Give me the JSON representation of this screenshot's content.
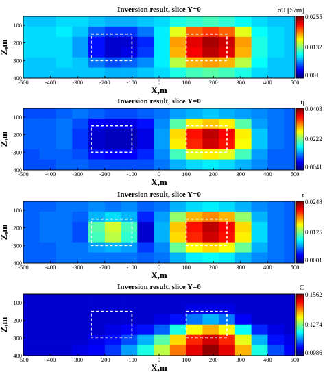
{
  "figure": {
    "background": "#ffffff",
    "colormap": "jet",
    "box_outline_color": "#ffffff"
  },
  "chart_data": [
    {
      "type": "heatmap",
      "title": "Inversion result, slice Y=0",
      "xlabel": "X,m",
      "ylabel": "Z,m",
      "colorbar_label": "σ0 [S/m]",
      "colorbar_ticks": [
        "0.0255",
        "0.0132",
        "0.001"
      ],
      "vmin": 0.001,
      "vmax": 0.0255,
      "xlim": [
        -500,
        500
      ],
      "ylim": [
        400,
        50
      ],
      "x_ticks": [
        -500,
        -400,
        -300,
        -200,
        -100,
        0,
        100,
        200,
        300,
        400,
        500
      ],
      "y_ticks": [
        100,
        200,
        300,
        400
      ],
      "x_edges": [
        -500,
        -440,
        -380,
        -320,
        -260,
        -200,
        -140,
        -80,
        -20,
        40,
        100,
        160,
        220,
        280,
        340,
        400,
        460,
        500
      ],
      "y_edges": [
        50,
        108,
        166,
        224,
        282,
        340,
        400
      ],
      "grid": [
        [
          0.32,
          0.32,
          0.34,
          0.34,
          0.32,
          0.3,
          0.3,
          0.32,
          0.34,
          0.4,
          0.42,
          0.44,
          0.42,
          0.38,
          0.34,
          0.32,
          0.32
        ],
        [
          0.34,
          0.34,
          0.36,
          0.32,
          0.22,
          0.18,
          0.18,
          0.24,
          0.36,
          0.6,
          0.78,
          0.82,
          0.78,
          0.6,
          0.38,
          0.34,
          0.32
        ],
        [
          0.34,
          0.34,
          0.34,
          0.28,
          0.14,
          0.08,
          0.08,
          0.16,
          0.36,
          0.72,
          0.9,
          0.96,
          0.92,
          0.72,
          0.4,
          0.34,
          0.32
        ],
        [
          0.34,
          0.34,
          0.34,
          0.28,
          0.14,
          0.08,
          0.1,
          0.18,
          0.36,
          0.7,
          0.88,
          0.94,
          0.9,
          0.7,
          0.4,
          0.34,
          0.32
        ],
        [
          0.32,
          0.32,
          0.34,
          0.32,
          0.24,
          0.2,
          0.22,
          0.26,
          0.36,
          0.56,
          0.7,
          0.72,
          0.7,
          0.56,
          0.38,
          0.32,
          0.32
        ],
        [
          0.32,
          0.32,
          0.32,
          0.32,
          0.32,
          0.3,
          0.3,
          0.32,
          0.34,
          0.4,
          0.44,
          0.46,
          0.44,
          0.4,
          0.34,
          0.32,
          0.32
        ]
      ],
      "boxes": [
        {
          "x0": -250,
          "x1": -100,
          "z0": 150,
          "z1": 300
        },
        {
          "x0": 100,
          "x1": 250,
          "z0": 150,
          "z1": 300
        }
      ]
    },
    {
      "type": "heatmap",
      "title": "Inversion result, slice Y=0",
      "xlabel": "X,m",
      "ylabel": "Z,m",
      "colorbar_label": "η",
      "colorbar_ticks": [
        "0.0403",
        "0.0222",
        "0.0041"
      ],
      "vmin": 0.0041,
      "vmax": 0.0403,
      "xlim": [
        -500,
        500
      ],
      "ylim": [
        400,
        50
      ],
      "x_ticks": [
        -500,
        -400,
        -300,
        -200,
        -100,
        0,
        100,
        200,
        300,
        400,
        500
      ],
      "y_ticks": [
        100,
        200,
        300,
        400
      ],
      "x_edges": [
        -500,
        -440,
        -380,
        -320,
        -260,
        -200,
        -140,
        -80,
        -20,
        40,
        100,
        160,
        220,
        280,
        340,
        400,
        460,
        500
      ],
      "y_edges": [
        50,
        108,
        166,
        224,
        282,
        340,
        400
      ],
      "grid": [
        [
          0.2,
          0.2,
          0.22,
          0.24,
          0.22,
          0.2,
          0.2,
          0.22,
          0.24,
          0.28,
          0.3,
          0.32,
          0.3,
          0.28,
          0.26,
          0.24,
          0.22
        ],
        [
          0.22,
          0.22,
          0.24,
          0.2,
          0.12,
          0.1,
          0.1,
          0.14,
          0.26,
          0.46,
          0.64,
          0.68,
          0.64,
          0.46,
          0.28,
          0.24,
          0.22
        ],
        [
          0.22,
          0.22,
          0.24,
          0.18,
          0.08,
          0.06,
          0.06,
          0.1,
          0.28,
          0.66,
          0.86,
          0.94,
          0.88,
          0.64,
          0.32,
          0.24,
          0.22
        ],
        [
          0.22,
          0.22,
          0.24,
          0.18,
          0.08,
          0.06,
          0.06,
          0.1,
          0.28,
          0.64,
          0.84,
          0.92,
          0.86,
          0.62,
          0.32,
          0.24,
          0.22
        ],
        [
          0.2,
          0.22,
          0.22,
          0.2,
          0.14,
          0.12,
          0.12,
          0.16,
          0.26,
          0.44,
          0.6,
          0.64,
          0.6,
          0.44,
          0.28,
          0.22,
          0.22
        ],
        [
          0.2,
          0.2,
          0.22,
          0.22,
          0.2,
          0.2,
          0.2,
          0.2,
          0.24,
          0.3,
          0.34,
          0.36,
          0.34,
          0.3,
          0.26,
          0.22,
          0.22
        ]
      ],
      "boxes": [
        {
          "x0": -250,
          "x1": -100,
          "z0": 150,
          "z1": 300
        },
        {
          "x0": 100,
          "x1": 250,
          "z0": 150,
          "z1": 300
        }
      ]
    },
    {
      "type": "heatmap",
      "title": "Inversion result, slice Y=0",
      "xlabel": "X,m",
      "ylabel": "Z,m",
      "colorbar_label": "τ",
      "colorbar_ticks": [
        "0.0248",
        "0.0125",
        "0.0001"
      ],
      "vmin": 0.0001,
      "vmax": 0.0248,
      "xlim": [
        -500,
        500
      ],
      "ylim": [
        400,
        50
      ],
      "x_ticks": [
        -500,
        -400,
        -300,
        -200,
        -100,
        0,
        100,
        200,
        300,
        400,
        500
      ],
      "y_ticks": [
        100,
        200,
        300,
        400
      ],
      "x_edges": [
        -500,
        -440,
        -380,
        -320,
        -260,
        -200,
        -140,
        -80,
        -20,
        40,
        100,
        160,
        220,
        280,
        340,
        400,
        460,
        500
      ],
      "y_edges": [
        50,
        108,
        166,
        224,
        282,
        340,
        400
      ],
      "grid": [
        [
          0.22,
          0.22,
          0.24,
          0.24,
          0.26,
          0.24,
          0.26,
          0.22,
          0.24,
          0.3,
          0.34,
          0.36,
          0.34,
          0.3,
          0.26,
          0.24,
          0.22
        ],
        [
          0.22,
          0.24,
          0.24,
          0.22,
          0.3,
          0.34,
          0.3,
          0.16,
          0.28,
          0.52,
          0.7,
          0.74,
          0.7,
          0.52,
          0.3,
          0.24,
          0.22
        ],
        [
          0.22,
          0.24,
          0.24,
          0.2,
          0.46,
          0.58,
          0.44,
          0.08,
          0.3,
          0.68,
          0.86,
          0.94,
          0.88,
          0.66,
          0.34,
          0.24,
          0.22
        ],
        [
          0.22,
          0.24,
          0.24,
          0.2,
          0.44,
          0.56,
          0.42,
          0.08,
          0.3,
          0.66,
          0.84,
          0.92,
          0.86,
          0.64,
          0.34,
          0.24,
          0.22
        ],
        [
          0.22,
          0.22,
          0.24,
          0.24,
          0.28,
          0.3,
          0.28,
          0.18,
          0.26,
          0.48,
          0.62,
          0.66,
          0.62,
          0.48,
          0.3,
          0.24,
          0.22
        ],
        [
          0.22,
          0.22,
          0.24,
          0.24,
          0.24,
          0.24,
          0.24,
          0.22,
          0.24,
          0.3,
          0.36,
          0.38,
          0.36,
          0.3,
          0.26,
          0.24,
          0.22
        ]
      ],
      "boxes": [
        {
          "x0": -250,
          "x1": -100,
          "z0": 150,
          "z1": 300
        },
        {
          "x0": 100,
          "x1": 250,
          "z0": 150,
          "z1": 300
        }
      ]
    },
    {
      "type": "heatmap",
      "title": "Inversion result, slice Y=0",
      "xlabel": "X,m",
      "ylabel": "Z,m",
      "colorbar_label": "C",
      "colorbar_ticks": [
        "0.1562",
        "0.1274",
        "0.0986"
      ],
      "vmin": 0.0986,
      "vmax": 0.1562,
      "xlim": [
        -500,
        500
      ],
      "ylim": [
        400,
        50
      ],
      "x_ticks": [
        -500,
        -400,
        -300,
        -200,
        -100,
        0,
        100,
        200,
        300,
        400,
        500
      ],
      "y_ticks": [
        100,
        200,
        300,
        400
      ],
      "x_edges": [
        -500,
        -440,
        -380,
        -320,
        -260,
        -200,
        -140,
        -80,
        -20,
        40,
        100,
        160,
        220,
        280,
        340,
        400,
        460,
        500
      ],
      "y_edges": [
        50,
        108,
        166,
        224,
        282,
        340,
        400
      ],
      "grid": [
        [
          0.08,
          0.08,
          0.08,
          0.08,
          0.08,
          0.08,
          0.08,
          0.08,
          0.08,
          0.08,
          0.08,
          0.08,
          0.08,
          0.08,
          0.08,
          0.08,
          0.08
        ],
        [
          0.08,
          0.08,
          0.08,
          0.08,
          0.08,
          0.08,
          0.08,
          0.08,
          0.08,
          0.08,
          0.1,
          0.1,
          0.1,
          0.08,
          0.08,
          0.08,
          0.08
        ],
        [
          0.08,
          0.08,
          0.08,
          0.08,
          0.08,
          0.08,
          0.08,
          0.08,
          0.1,
          0.14,
          0.24,
          0.3,
          0.24,
          0.12,
          0.08,
          0.08,
          0.08
        ],
        [
          0.08,
          0.08,
          0.08,
          0.08,
          0.08,
          0.1,
          0.12,
          0.14,
          0.22,
          0.4,
          0.62,
          0.7,
          0.62,
          0.38,
          0.16,
          0.1,
          0.08
        ],
        [
          0.08,
          0.08,
          0.08,
          0.08,
          0.1,
          0.14,
          0.2,
          0.3,
          0.46,
          0.66,
          0.84,
          0.92,
          0.84,
          0.6,
          0.3,
          0.14,
          0.1
        ],
        [
          0.08,
          0.08,
          0.08,
          0.1,
          0.12,
          0.18,
          0.28,
          0.4,
          0.56,
          0.76,
          0.9,
          0.98,
          0.9,
          0.7,
          0.4,
          0.2,
          0.12
        ]
      ],
      "boxes": [
        {
          "x0": -250,
          "x1": -100,
          "z0": 150,
          "z1": 300
        },
        {
          "x0": 100,
          "x1": 250,
          "z0": 150,
          "z1": 300
        }
      ]
    }
  ]
}
